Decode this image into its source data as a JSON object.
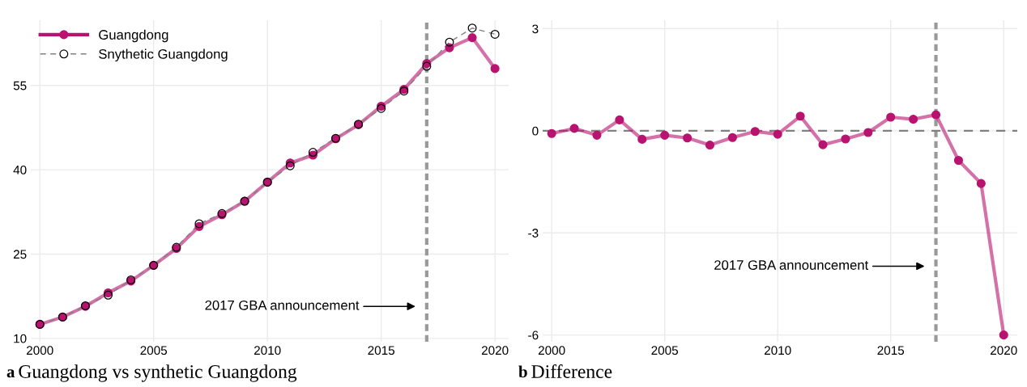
{
  "chart_data": [
    {
      "type": "line",
      "title": "a Guangdong vs synthetic Guangdong",
      "x": [
        2000,
        2001,
        2002,
        2003,
        2004,
        2005,
        2006,
        2007,
        2008,
        2009,
        2010,
        2011,
        2012,
        2013,
        2014,
        2015,
        2016,
        2017,
        2018,
        2019,
        2020
      ],
      "series": [
        {
          "name": "Guangdong",
          "color": "#b8136f",
          "line_style": "solid",
          "marker": "circle",
          "values": [
            12.5,
            13.8,
            15.7,
            18.1,
            20.2,
            23.0,
            26.0,
            29.9,
            32.0,
            34.4,
            37.8,
            41.2,
            42.6,
            45.5,
            48.0,
            51.3,
            54.3,
            58.9,
            61.7,
            63.5,
            58.0
          ]
        },
        {
          "name": "Snythetic Guangdong",
          "color": "#808080",
          "line_style": "dashed",
          "marker": "circle",
          "values": [
            12.5,
            13.8,
            15.8,
            17.7,
            20.4,
            23.0,
            26.2,
            30.4,
            32.2,
            34.4,
            37.8,
            40.7,
            43.1,
            45.6,
            48.1,
            50.9,
            54.0,
            58.4,
            62.7,
            65.2,
            64.1
          ]
        }
      ],
      "xlim": [
        1999.6,
        2020.6
      ],
      "xticks": [
        2000,
        2005,
        2010,
        2015,
        2020
      ],
      "ylim": [
        9.4,
        66.6
      ],
      "yticks": [
        10,
        25,
        40,
        55
      ],
      "grid": true,
      "legend": "top left",
      "ref_lines": [
        {
          "axis": "x",
          "value": 2017,
          "color": "#999999",
          "line_style": "dashed"
        }
      ],
      "annotations": [
        "2017 GBA announcement"
      ]
    },
    {
      "type": "line",
      "title": "b Difference",
      "x": [
        2000,
        2001,
        2002,
        2003,
        2004,
        2005,
        2006,
        2007,
        2008,
        2009,
        2010,
        2011,
        2012,
        2013,
        2014,
        2015,
        2016,
        2017,
        2018,
        2019,
        2020
      ],
      "series": [
        {
          "color": "#b8136f",
          "line_style": "solid",
          "marker": "circle",
          "values": [
            -0.08,
            0.07,
            -0.13,
            0.32,
            -0.25,
            -0.13,
            -0.21,
            -0.42,
            -0.2,
            -0.02,
            -0.1,
            0.43,
            -0.41,
            -0.24,
            -0.05,
            0.4,
            0.34,
            0.47,
            -0.87,
            -1.55,
            -6.0
          ]
        }
      ],
      "xlim": [
        1999.6,
        2020.6
      ],
      "xticks": [
        2000,
        2005,
        2010,
        2015,
        2020
      ],
      "ylim": [
        -6.2,
        3.25
      ],
      "yticks": [
        {
          "value": 3,
          "label": "3"
        },
        {
          "value": 0,
          "label": "0"
        },
        {
          "value": -3,
          "label": "-3"
        },
        {
          "value": -6,
          "label": "-6"
        }
      ],
      "grid": true,
      "ref_lines": [
        {
          "axis": "x",
          "value": 2017,
          "color": "#999999",
          "line_style": "dashed"
        },
        {
          "axis": "y",
          "value": 0,
          "color": "#808080",
          "line_style": "dashed"
        }
      ],
      "annotations": [
        "2017 GBA announcement"
      ]
    }
  ]
}
